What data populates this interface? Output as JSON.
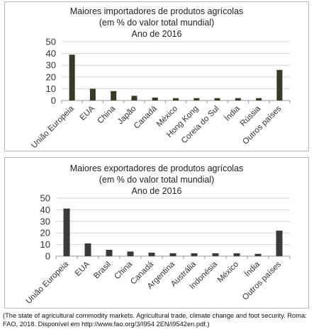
{
  "chart_data": [
    {
      "type": "bar",
      "title": "Maiores importadores de produtos agrícolas",
      "subtitle": "(em % do valor total mundial)",
      "subtitle2": "Ano de 2016",
      "categories": [
        "União Europeia",
        "EUA",
        "China",
        "Japão",
        "Canadá",
        "México",
        "Hong Kong",
        "Coreia do Sul",
        "Índia",
        "Rússia",
        "Outros países"
      ],
      "values": [
        39,
        10,
        8,
        4,
        2.5,
        2,
        2,
        2,
        2,
        2,
        26
      ],
      "ylim": [
        0,
        50
      ],
      "yticks": [
        0,
        10,
        20,
        30,
        40,
        50
      ],
      "grid": true,
      "bar_color": "#3a3a24"
    },
    {
      "type": "bar",
      "title": "Maiores exportadores de produtos agrícolas",
      "subtitle": "(em % do valor total mundial)",
      "subtitle2": "Ano de 2016",
      "categories": [
        "União Europeia",
        "EUA",
        "Brasil",
        "China",
        "Canadá",
        "Argentina",
        "Austrália",
        "Indonésia",
        "México",
        "Índia",
        "Outros países"
      ],
      "values": [
        41,
        11,
        5.5,
        4,
        3,
        2.5,
        2.5,
        2.5,
        2.5,
        2,
        22
      ],
      "ylim": [
        0,
        50
      ],
      "yticks": [
        0,
        10,
        20,
        30,
        40,
        50
      ],
      "grid": true,
      "bar_color": "#3a3a3a"
    }
  ],
  "caption": "(The state of agricultural commodity markets. Agricultural trade, climate change and foot security. Roma: FAO, 2018. Disponível em http://www.fao.org/3/I954 2EN/i9542en.pdf.)"
}
